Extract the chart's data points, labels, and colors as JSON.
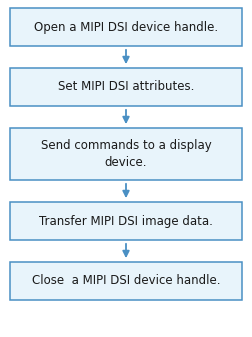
{
  "steps": [
    "Open a MIPI DSI device handle.",
    "Set MIPI DSI attributes.",
    "Send commands to a display\ndevice.",
    "Transfer MIPI DSI image data.",
    "Close  a MIPI DSI device handle."
  ],
  "box_facecolor": "#e8f4fb",
  "box_edgecolor": "#4a90c4",
  "arrow_color": "#4a90c4",
  "text_color": "#1a1a1a",
  "bg_color": "#ffffff",
  "font_size": 8.5,
  "fig_width": 2.52,
  "fig_height": 3.37,
  "dpi": 100
}
